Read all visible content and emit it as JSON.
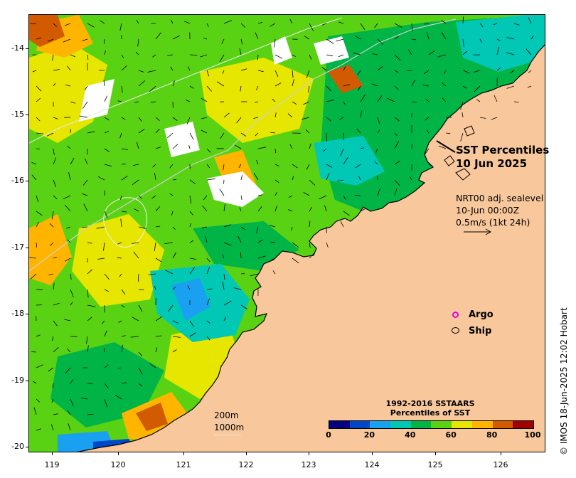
{
  "map": {
    "title_line1": "SST Percentiles",
    "title_line2": "10 Jun 2025",
    "current_info": [
      "NRT00 adj. sealevel",
      "10-Jun 00:00Z",
      "0.5m/s (1kt 24h)"
    ],
    "legend": {
      "argo": "Argo",
      "ship": "Ship",
      "argo_color": "#e000e0"
    },
    "colorbar": {
      "title_line1": "1992-2016 SSTAARS",
      "title_line2": "Percentiles of SST",
      "labels": [
        "0",
        "20",
        "40",
        "60",
        "80",
        "100"
      ],
      "colors": [
        "#000080",
        "#0046c8",
        "#1aa0f0",
        "#00c8b4",
        "#00b446",
        "#5ad214",
        "#e6e600",
        "#ffb400",
        "#d25a00",
        "#a00000"
      ]
    },
    "depth_labels": [
      "200m",
      "1000m"
    ],
    "y_ticks": [
      "-14",
      "-15",
      "-16",
      "-17",
      "-18",
      "-19",
      "-20"
    ],
    "x_ticks": [
      "119",
      "120",
      "121",
      "122",
      "123",
      "124",
      "125",
      "126"
    ],
    "credit": "© IMOS 18-Jun-2025 12:02 Hobart",
    "land_color": "#f8c89c"
  }
}
